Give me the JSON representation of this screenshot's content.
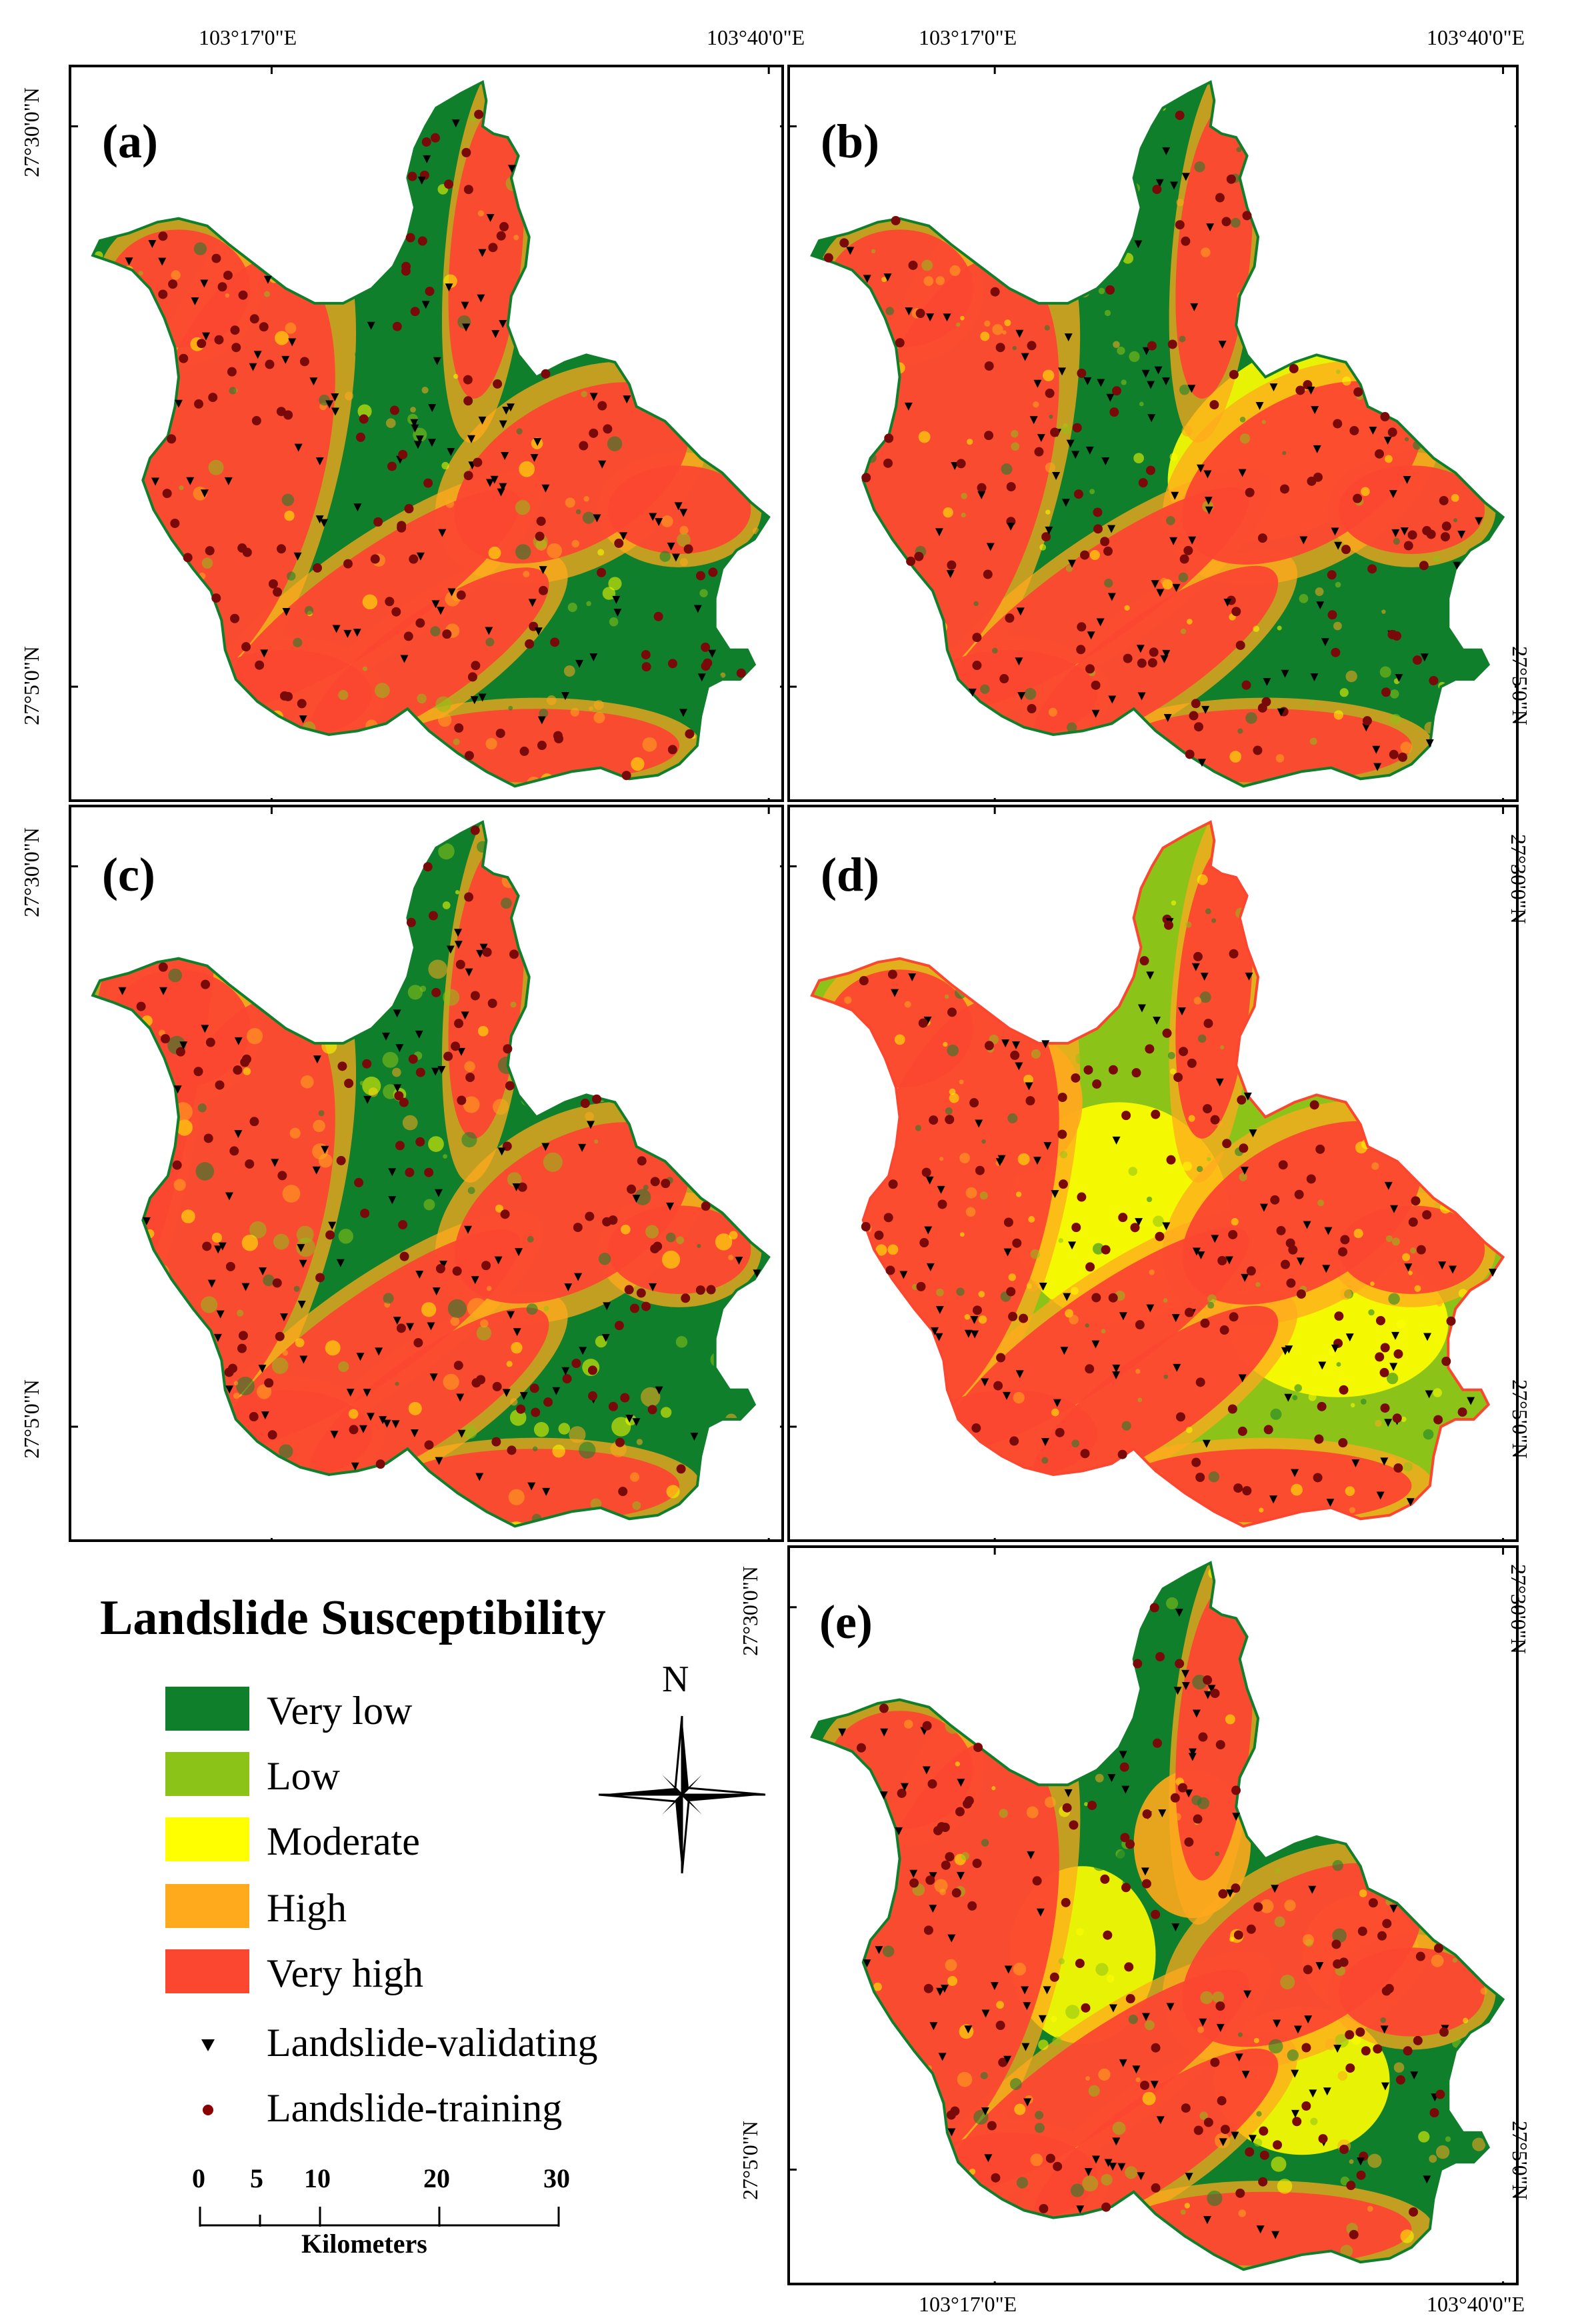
{
  "panels": [
    {
      "id": "a",
      "label": "(a)"
    },
    {
      "id": "b",
      "label": "(b)"
    },
    {
      "id": "c",
      "label": "(c)"
    },
    {
      "id": "d",
      "label": "(d)"
    },
    {
      "id": "e",
      "label": "(e)"
    }
  ],
  "coords": {
    "lon_west": "103°17'0\"E",
    "lon_east": "103°40'0\"E",
    "lat_north": "27°30'0\"N",
    "lat_south": "27°5'0\"N"
  },
  "legend": {
    "title": "Landslide Susceptibility",
    "classes": [
      {
        "label": "Very low",
        "color": "#107f2c"
      },
      {
        "label": "Low",
        "color": "#8cc318"
      },
      {
        "label": "Moderate",
        "color": "#ffff00"
      },
      {
        "label": "High",
        "color": "#ffaa1d"
      },
      {
        "label": "Very high",
        "color": "#fc4730"
      }
    ],
    "markers": [
      {
        "label": "Landslide-validating",
        "symbol": "black-triangle",
        "color": "#000000"
      },
      {
        "label": "Landslide-training",
        "symbol": "dark-red-dot",
        "color": "#8b0000"
      }
    ]
  },
  "north_arrow": {
    "label": "N"
  },
  "scale_bar": {
    "ticks": [
      "0",
      "5",
      "10",
      "20",
      "30"
    ],
    "unit": "Kilometers"
  }
}
